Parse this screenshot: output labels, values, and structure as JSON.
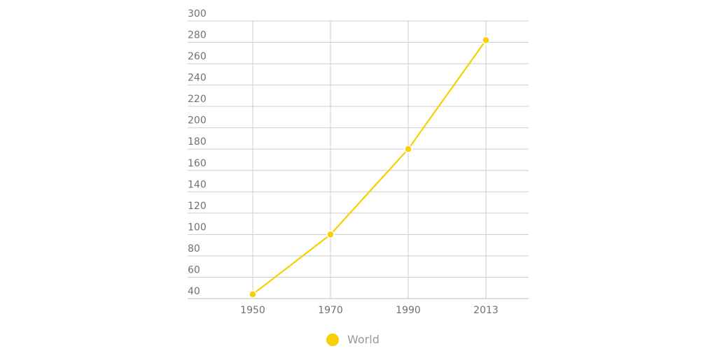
{
  "chart_data": {
    "type": "line",
    "title": "",
    "xlabel": "",
    "ylabel": "",
    "categories": [
      "1950",
      "1970",
      "1990",
      "2013"
    ],
    "series": [
      {
        "name": "World",
        "color": "#f8cf00",
        "values": [
          44,
          100,
          180,
          282
        ]
      }
    ],
    "ylim": [
      40,
      300
    ],
    "yticks": [
      40,
      60,
      80,
      100,
      120,
      140,
      160,
      180,
      200,
      220,
      240,
      260,
      280,
      300
    ],
    "grid": true,
    "legend_position": "bottom"
  },
  "legend": {
    "label": "World",
    "color": "#f8cf00"
  }
}
